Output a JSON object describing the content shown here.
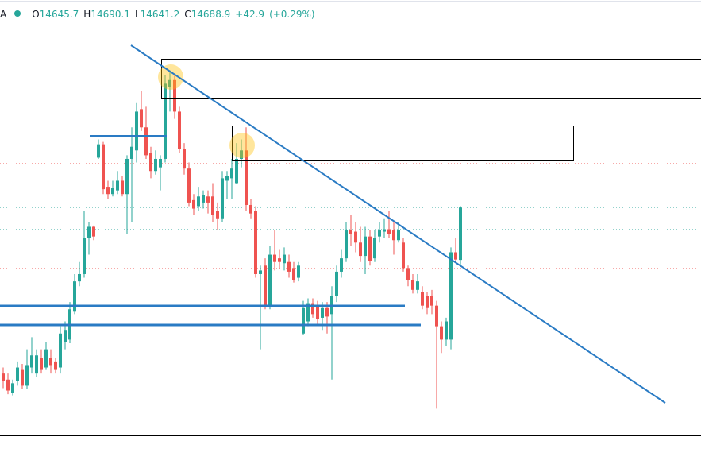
{
  "chart_data": {
    "type": "candlestick",
    "symbol_fragment": "A",
    "ohlc_labels": [
      "O",
      "H",
      "L",
      "C"
    ],
    "change": "+42.9",
    "change_percent": "(+0.29%)",
    "up_color": "#26a69a",
    "down_color": "#ef5350",
    "ylim": [
      14501,
      14860
    ],
    "open": [
      14552,
      14547,
      14536,
      14546,
      14555,
      14542,
      14557,
      14552,
      14565,
      14557,
      14565,
      14562,
      14557,
      14578,
      14580,
      14603,
      14628,
      14634,
      14664,
      14673,
      14730,
      14741,
      14706,
      14700,
      14703,
      14711,
      14700,
      14729,
      14736,
      14770,
      14755,
      14734,
      14719,
      14722,
      14729,
      14788,
      14794,
      14768,
      14737,
      14721,
      14695,
      14690,
      14693,
      14698,
      14698,
      14686,
      14680,
      14711,
      14713,
      14709,
      14729,
      14736,
      14691,
      14686,
      14634,
      14641,
      14608,
      14650,
      14647,
      14643,
      14644,
      14639,
      14631,
      14585,
      14595,
      14610,
      14608,
      14598,
      14606,
      14601,
      14616,
      14636,
      14647,
      14670,
      14669,
      14660,
      14649,
      14665,
      14647,
      14665,
      14669,
      14671,
      14670,
      14662,
      14660,
      14639,
      14629,
      14621,
      14619,
      14616,
      14616,
      14608,
      14591,
      14580,
      14580,
      14652,
      14645.7
    ],
    "high": [
      14557,
      14552,
      14547,
      14562,
      14560,
      14572,
      14582,
      14572,
      14572,
      14578,
      14572,
      14565,
      14591,
      14595,
      14611,
      14634,
      14644,
      14686,
      14677,
      14674,
      14745,
      14743,
      14711,
      14711,
      14719,
      14715,
      14732,
      14755,
      14775,
      14785,
      14772,
      14739,
      14736,
      14732,
      14798,
      14802,
      14798,
      14772,
      14742,
      14726,
      14700,
      14706,
      14703,
      14703,
      14709,
      14693,
      14719,
      14719,
      14729,
      14742,
      14745,
      14755,
      14696,
      14690,
      14641,
      14647,
      14657,
      14670,
      14654,
      14656,
      14650,
      14644,
      14644,
      14612,
      14614,
      14614,
      14612,
      14611,
      14611,
      14624,
      14641,
      14654,
      14677,
      14683,
      14677,
      14673,
      14673,
      14670,
      14670,
      14677,
      14680,
      14686,
      14677,
      14677,
      14664,
      14641,
      14634,
      14634,
      14624,
      14619,
      14621,
      14612,
      14595,
      14598,
      14656,
      14664,
      14690.1
    ],
    "low": [
      14540,
      14535,
      14534,
      14542,
      14539,
      14539,
      14552,
      14549,
      14552,
      14555,
      14552,
      14552,
      14552,
      14572,
      14577,
      14601,
      14624,
      14631,
      14650,
      14662,
      14729,
      14700,
      14696,
      14698,
      14700,
      14698,
      14667,
      14677,
      14726,
      14752,
      14729,
      14713,
      14716,
      14703,
      14726,
      14768,
      14762,
      14734,
      14716,
      14690,
      14683,
      14686,
      14688,
      14684,
      14677,
      14670,
      14677,
      14696,
      14696,
      14708,
      14722,
      14686,
      14680,
      14631,
      14572,
      14605,
      14605,
      14637,
      14639,
      14637,
      14631,
      14627,
      14628,
      14584,
      14591,
      14598,
      14593,
      14588,
      14585,
      14547,
      14611,
      14631,
      14644,
      14657,
      14652,
      14644,
      14634,
      14641,
      14644,
      14660,
      14664,
      14664,
      14650,
      14660,
      14636,
      14624,
      14618,
      14618,
      14605,
      14601,
      14601,
      14523,
      14569,
      14575,
      14572,
      14644,
      14641.2
    ],
    "close": [
      14546,
      14538,
      14544,
      14557,
      14542,
      14559,
      14567,
      14567,
      14555,
      14572,
      14559,
      14555,
      14585,
      14588,
      14605,
      14628,
      14634,
      14664,
      14673,
      14665,
      14741,
      14704,
      14700,
      14705,
      14711,
      14700,
      14729,
      14739,
      14768,
      14755,
      14732,
      14719,
      14729,
      14729,
      14791,
      14794,
      14768,
      14737,
      14721,
      14693,
      14688,
      14698,
      14699,
      14693,
      14683,
      14680,
      14713,
      14715,
      14721,
      14729,
      14736,
      14691,
      14684,
      14634,
      14637,
      14608,
      14650,
      14644,
      14644,
      14650,
      14636,
      14629,
      14641,
      14606,
      14610,
      14601,
      14597,
      14606,
      14599,
      14616,
      14636,
      14647,
      14670,
      14667,
      14660,
      14649,
      14665,
      14645,
      14664,
      14670,
      14671,
      14667,
      14662,
      14670,
      14639,
      14629,
      14621,
      14628,
      14608,
      14606,
      14608,
      14591,
      14580,
      14595,
      14652,
      14646,
      14688.9
    ]
  }
}
